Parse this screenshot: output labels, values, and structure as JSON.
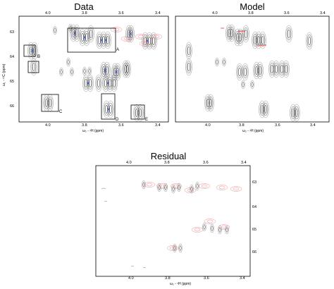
{
  "panels": {
    "data": {
      "title": "Data",
      "x_ticks": [
        "4.0",
        "3.8",
        "3.6",
        "3.4"
      ],
      "y_ticks": [
        "63",
        "64",
        "65",
        "66"
      ],
      "xlabel": "ω₂ - ¹H (ppm)",
      "ylabel": "ω₁ - ¹³C (ppm)",
      "box_labels": [
        "A",
        "B",
        "C",
        "D",
        "E"
      ]
    },
    "model": {
      "title": "Model",
      "x_ticks": [
        "4.0",
        "3.8",
        "3.6",
        "3.4"
      ],
      "xlabel": "ω₂ - ¹H (ppm)"
    },
    "residual": {
      "title": "Residual",
      "x_ticks": [
        "4.0",
        "3.8",
        "3.6",
        "3.4"
      ],
      "y_ticks": [
        "63",
        "64",
        "65",
        "66"
      ],
      "xlabel": "ω₂ - ¹H (ppm)"
    }
  },
  "colors": {
    "contour_black": "#333333",
    "contour_red": "#e8767a",
    "marker_blue": "#2f4fb0",
    "frame": "#000000"
  }
}
